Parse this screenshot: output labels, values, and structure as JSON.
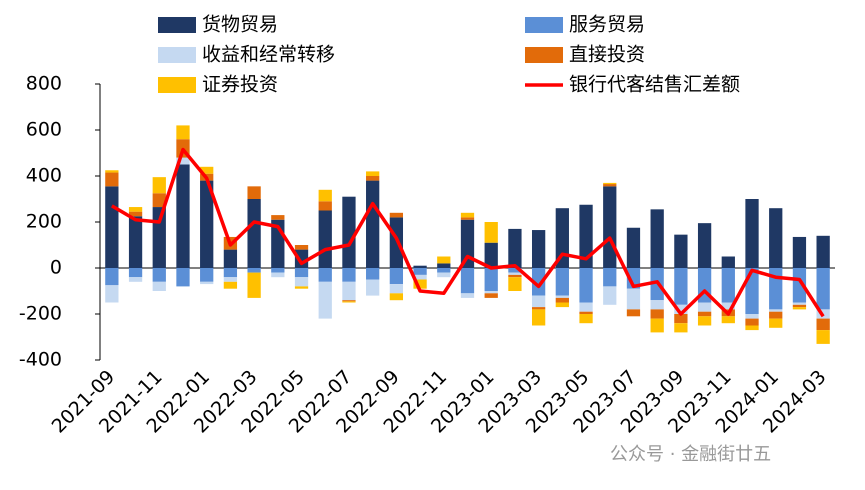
{
  "chart_data": {
    "type": "bar-line",
    "categories": [
      "2021-09",
      null,
      "2021-11",
      null,
      "2022-01",
      null,
      "2022-03",
      null,
      "2022-05",
      null,
      "2022-07",
      null,
      "2022-09",
      null,
      "2022-11",
      null,
      "2023-01",
      null,
      "2023-03",
      null,
      "2023-05",
      null,
      "2023-07",
      null,
      "2023-09",
      null,
      "2023-11",
      null,
      "2024-01",
      null,
      "2024-03"
    ],
    "series": [
      {
        "name": "货物贸易",
        "type": "bar",
        "color": "#1f3864",
        "values": [
          355,
          225,
          265,
          450,
          380,
          80,
          300,
          210,
          80,
          250,
          310,
          380,
          220,
          10,
          20,
          210,
          110,
          170,
          165,
          260,
          275,
          355,
          175,
          255,
          145,
          195,
          50,
          300,
          260,
          135,
          140
        ]
      },
      {
        "name": "服务贸易",
        "type": "bar",
        "color": "#5b8fd6",
        "values": [
          -75,
          -40,
          -60,
          -80,
          -60,
          -40,
          -20,
          -20,
          -40,
          -60,
          -60,
          -50,
          -70,
          -30,
          -20,
          -110,
          -100,
          -20,
          -120,
          -120,
          -150,
          -80,
          -90,
          -140,
          -160,
          -150,
          -150,
          -200,
          -180,
          -150,
          -180
        ]
      },
      {
        "name": "收益和经常转移",
        "type": "bar",
        "color": "#c5d9f1",
        "values": [
          -75,
          -20,
          -40,
          30,
          -10,
          -20,
          0,
          -20,
          -40,
          -160,
          -80,
          -70,
          -40,
          -20,
          -20,
          -20,
          -10,
          -10,
          -50,
          -10,
          -40,
          -80,
          -90,
          -40,
          -40,
          -40,
          -30,
          -20,
          -10,
          -10,
          -40
        ]
      },
      {
        "name": "直接投资",
        "type": "bar",
        "color": "#e26b0a",
        "values": [
          60,
          20,
          60,
          80,
          30,
          55,
          55,
          20,
          20,
          40,
          -5,
          20,
          20,
          0,
          0,
          10,
          -20,
          -10,
          -10,
          -20,
          -10,
          10,
          -30,
          -40,
          -40,
          -20,
          -30,
          -30,
          -30,
          -10,
          -50
        ]
      },
      {
        "name": "证券投资",
        "type": "bar",
        "color": "#ffc000",
        "values": [
          10,
          20,
          70,
          60,
          30,
          -30,
          -110,
          0,
          -10,
          50,
          -5,
          20,
          -30,
          -40,
          30,
          20,
          90,
          -60,
          -70,
          -20,
          -40,
          5,
          0,
          -60,
          -40,
          -40,
          -30,
          -20,
          -40,
          -10,
          -60
        ]
      },
      {
        "name": "银行代客结售汇差额",
        "type": "line",
        "color": "#ff0000",
        "values": [
          270,
          210,
          200,
          515,
          390,
          100,
          200,
          180,
          20,
          80,
          100,
          280,
          130,
          -100,
          -110,
          50,
          0,
          10,
          -80,
          60,
          40,
          130,
          -80,
          -60,
          -200,
          -100,
          -200,
          -10,
          -40,
          -50,
          -210
        ]
      }
    ],
    "ylim": [
      -400,
      800
    ],
    "yticks": [
      -400,
      -200,
      0,
      200,
      400,
      600,
      800
    ],
    "watermark": "公众号 · 金融街廿五"
  }
}
